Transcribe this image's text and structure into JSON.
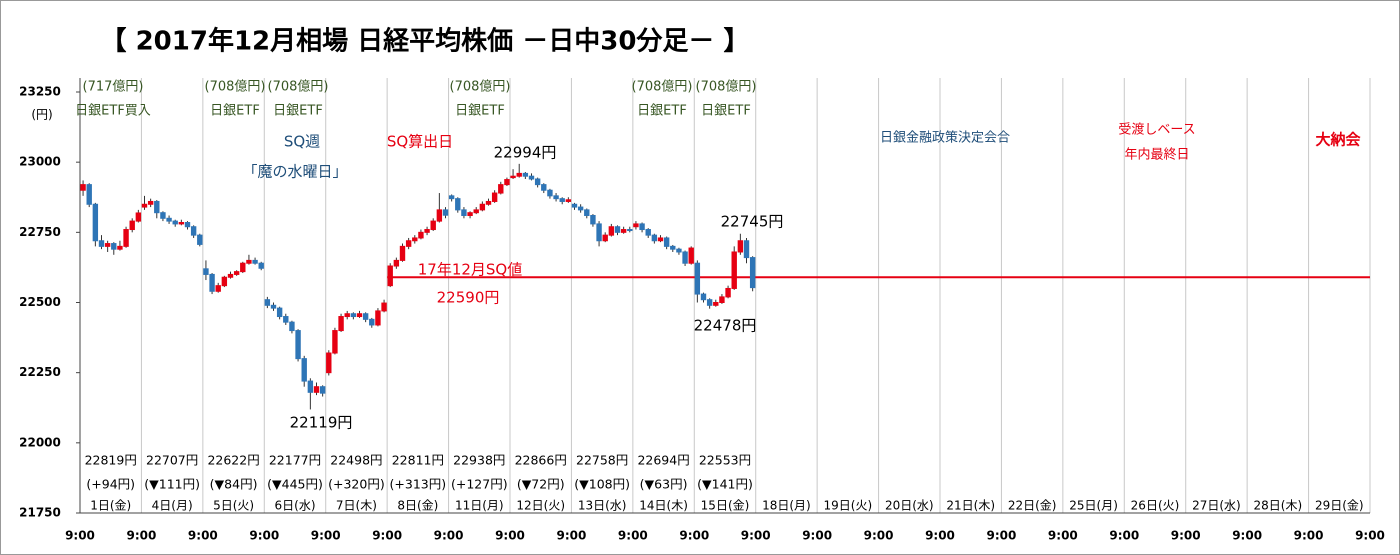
{
  "chart_data": {
    "type": "candlestick",
    "title": "【 2017年12月相場 日経平均株価 －日中30分足－ 】",
    "y_unit": "(円)",
    "up_color": "#e60012",
    "down_color": "#2e75b6",
    "ylim": [
      21750,
      23250
    ],
    "yticks": [
      21750,
      22000,
      22250,
      22500,
      22750,
      23000,
      23250
    ],
    "categories": [
      "1日(金)",
      "4日(月)",
      "5日(火)",
      "6日(水)",
      "7日(木)",
      "8日(金)",
      "11日(月)",
      "12日(火)",
      "13日(水)",
      "14日(木)",
      "15日(金)",
      "18日(月)",
      "19日(火)",
      "20日(水)",
      "21日(木)",
      "22日(金)",
      "25日(月)",
      "26日(火)",
      "27日(水)",
      "28日(木)",
      "29日(金)"
    ],
    "xtick_labels": [
      "9:00",
      "9:00",
      "9:00",
      "9:00",
      "9:00",
      "9:00",
      "9:00",
      "9:00",
      "9:00",
      "9:00",
      "9:00",
      "9:00",
      "9:00",
      "9:00",
      "9:00",
      "9:00",
      "9:00",
      "9:00",
      "9:00",
      "9:00",
      "9:00",
      "9:00"
    ],
    "candles_per_day": 10,
    "candles": [
      [
        22900,
        22935,
        22880,
        22920
      ],
      [
        22920,
        22925,
        22840,
        22850
      ],
      [
        22850,
        22855,
        22700,
        22720
      ],
      [
        22720,
        22740,
        22690,
        22700
      ],
      [
        22700,
        22720,
        22680,
        22710
      ],
      [
        22710,
        22715,
        22670,
        22690
      ],
      [
        22690,
        22720,
        22685,
        22700
      ],
      [
        22700,
        22770,
        22695,
        22760
      ],
      [
        22760,
        22800,
        22750,
        22790
      ],
      [
        22790,
        22830,
        22785,
        22819
      ],
      [
        22840,
        22880,
        22830,
        22850
      ],
      [
        22850,
        22870,
        22840,
        22860
      ],
      [
        22860,
        22865,
        22800,
        22820
      ],
      [
        22820,
        22825,
        22790,
        22800
      ],
      [
        22800,
        22810,
        22780,
        22790
      ],
      [
        22790,
        22795,
        22770,
        22780
      ],
      [
        22780,
        22795,
        22775,
        22785
      ],
      [
        22785,
        22790,
        22760,
        22770
      ],
      [
        22770,
        22775,
        22730,
        22740
      ],
      [
        22740,
        22745,
        22700,
        22707
      ],
      [
        22620,
        22650,
        22580,
        22600
      ],
      [
        22600,
        22605,
        22530,
        22540
      ],
      [
        22540,
        22570,
        22535,
        22560
      ],
      [
        22560,
        22595,
        22555,
        22590
      ],
      [
        22590,
        22610,
        22585,
        22600
      ],
      [
        22600,
        22615,
        22595,
        22610
      ],
      [
        22610,
        22645,
        22605,
        22640
      ],
      [
        22640,
        22670,
        22635,
        22650
      ],
      [
        22650,
        22660,
        22635,
        22640
      ],
      [
        22640,
        22645,
        22615,
        22622
      ],
      [
        22510,
        22520,
        22480,
        22490
      ],
      [
        22490,
        22500,
        22470,
        22480
      ],
      [
        22480,
        22485,
        22440,
        22450
      ],
      [
        22450,
        22460,
        22420,
        22430
      ],
      [
        22430,
        22435,
        22390,
        22400
      ],
      [
        22400,
        22405,
        22290,
        22300
      ],
      [
        22300,
        22310,
        22200,
        22220
      ],
      [
        22220,
        22230,
        22119,
        22180
      ],
      [
        22180,
        22215,
        22170,
        22200
      ],
      [
        22200,
        22205,
        22165,
        22177
      ],
      [
        22250,
        22330,
        22240,
        22320
      ],
      [
        22320,
        22410,
        22315,
        22400
      ],
      [
        22400,
        22460,
        22395,
        22450
      ],
      [
        22450,
        22470,
        22440,
        22460
      ],
      [
        22460,
        22465,
        22440,
        22450
      ],
      [
        22450,
        22470,
        22445,
        22460
      ],
      [
        22460,
        22465,
        22430,
        22440
      ],
      [
        22440,
        22445,
        22410,
        22420
      ],
      [
        22420,
        22480,
        22415,
        22470
      ],
      [
        22470,
        22510,
        22465,
        22498
      ],
      [
        22560,
        22640,
        22555,
        22630
      ],
      [
        22630,
        22660,
        22620,
        22650
      ],
      [
        22650,
        22710,
        22645,
        22700
      ],
      [
        22700,
        22730,
        22690,
        22720
      ],
      [
        22720,
        22740,
        22710,
        22730
      ],
      [
        22730,
        22760,
        22725,
        22750
      ],
      [
        22750,
        22770,
        22740,
        22760
      ],
      [
        22760,
        22800,
        22755,
        22790
      ],
      [
        22790,
        22890,
        22785,
        22830
      ],
      [
        22830,
        22840,
        22800,
        22811
      ],
      [
        22880,
        22885,
        22860,
        22870
      ],
      [
        22870,
        22875,
        22820,
        22830
      ],
      [
        22830,
        22840,
        22800,
        22810
      ],
      [
        22810,
        22825,
        22800,
        22820
      ],
      [
        22820,
        22840,
        22815,
        22830
      ],
      [
        22830,
        22860,
        22825,
        22850
      ],
      [
        22850,
        22870,
        22845,
        22860
      ],
      [
        22860,
        22900,
        22855,
        22890
      ],
      [
        22890,
        22930,
        22885,
        22920
      ],
      [
        22920,
        22945,
        22915,
        22938
      ],
      [
        22945,
        22975,
        22940,
        22950
      ],
      [
        22950,
        22994,
        22945,
        22960
      ],
      [
        22960,
        22965,
        22940,
        22950
      ],
      [
        22950,
        22960,
        22935,
        22940
      ],
      [
        22940,
        22945,
        22910,
        22920
      ],
      [
        22920,
        22925,
        22890,
        22900
      ],
      [
        22900,
        22905,
        22870,
        22880
      ],
      [
        22880,
        22890,
        22860,
        22870
      ],
      [
        22870,
        22875,
        22850,
        22860
      ],
      [
        22860,
        22875,
        22855,
        22866
      ],
      [
        22850,
        22855,
        22830,
        22840
      ],
      [
        22840,
        22850,
        22820,
        22830
      ],
      [
        22830,
        22835,
        22800,
        22810
      ],
      [
        22810,
        22815,
        22770,
        22780
      ],
      [
        22780,
        22790,
        22700,
        22720
      ],
      [
        22720,
        22750,
        22715,
        22740
      ],
      [
        22740,
        22780,
        22735,
        22770
      ],
      [
        22770,
        22775,
        22740,
        22750
      ],
      [
        22750,
        22770,
        22745,
        22760
      ],
      [
        22760,
        22770,
        22750,
        22758
      ],
      [
        22770,
        22790,
        22760,
        22780
      ],
      [
        22780,
        22785,
        22750,
        22760
      ],
      [
        22760,
        22765,
        22730,
        22740
      ],
      [
        22740,
        22745,
        22710,
        22720
      ],
      [
        22720,
        22740,
        22715,
        22730
      ],
      [
        22730,
        22735,
        22690,
        22700
      ],
      [
        22700,
        22705,
        22680,
        22690
      ],
      [
        22690,
        22695,
        22670,
        22680
      ],
      [
        22680,
        22685,
        22630,
        22640
      ],
      [
        22640,
        22700,
        22635,
        22694
      ],
      [
        22640,
        22650,
        22500,
        22530
      ],
      [
        22530,
        22535,
        22500,
        22510
      ],
      [
        22510,
        22515,
        22478,
        22490
      ],
      [
        22490,
        22510,
        22485,
        22500
      ],
      [
        22500,
        22530,
        22495,
        22520
      ],
      [
        22520,
        22560,
        22515,
        22550
      ],
      [
        22550,
        22700,
        22545,
        22680
      ],
      [
        22680,
        22745,
        22670,
        22720
      ],
      [
        22720,
        22730,
        22640,
        22660
      ],
      [
        22660,
        22665,
        22540,
        22553
      ]
    ],
    "daily_close": {
      "values": [
        22819,
        22707,
        22622,
        22177,
        22498,
        22811,
        22938,
        22866,
        22758,
        22694,
        22553
      ],
      "value_labels": [
        "22819円",
        "22707円",
        "22622円",
        "22177円",
        "22498円",
        "22811円",
        "22938円",
        "22866円",
        "22758円",
        "22694円",
        "22553円"
      ]
    },
    "daily_change": {
      "values": [
        94,
        -111,
        -84,
        -445,
        320,
        313,
        127,
        -72,
        -108,
        -63,
        -141
      ],
      "value_labels": [
        "(+94円)",
        "(▼111円)",
        "(▼84円)",
        "(▼445円)",
        "(+320円)",
        "(+313円)",
        "(+127円)",
        "(▼72円)",
        "(▼108円)",
        "(▼63円)",
        "(▼141円)"
      ]
    },
    "sq_line": {
      "value": 22590,
      "from": "8日(金)",
      "color": "#e60012",
      "title": "17年12月SQ値",
      "label": "22590円"
    }
  },
  "annotations": {
    "etf": [
      {
        "amount": "(717億円)",
        "label": "日銀ETF買入"
      },
      {
        "amount": "(708億円)",
        "label": "日銀ETF"
      },
      {
        "amount": "(708億円)",
        "label": "日銀ETF"
      },
      {
        "amount": "(708億円)",
        "label": "日銀ETF"
      },
      {
        "amount": "(708億円)",
        "label": "日銀ETF"
      },
      {
        "amount": "(708億円)",
        "label": "日銀ETF"
      }
    ],
    "sq_week": "SQ週",
    "sq_week_note": "「魔の水曜日」",
    "sq_day": "SQ算出日",
    "high": "22994円",
    "recent_high": "22745円",
    "recent_low": "22478円",
    "low": "22119円",
    "boj": "日銀金融政策決定会合",
    "delivery": "受渡しベース",
    "delivery_note": "年内最終日",
    "last_day": "大納会"
  }
}
